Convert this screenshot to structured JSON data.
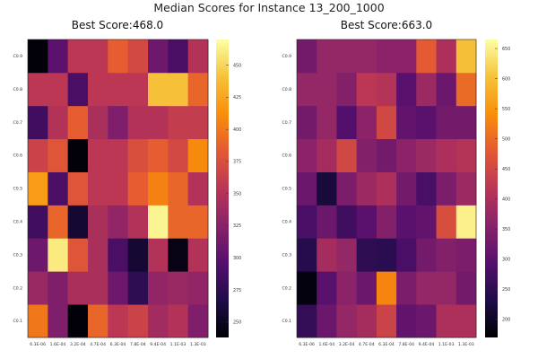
{
  "figure_title": "Median Scores for Instance 13_200_1000",
  "colormap": [
    "#000004",
    "#1f0c48",
    "#550f6d",
    "#88226a",
    "#ba3655",
    "#e35933",
    "#f98e09",
    "#f6c23a",
    "#fcffa4"
  ],
  "chart_data": [
    {
      "type": "heatmap",
      "title": "Best Score:468.0",
      "x": [
        "6.3E-06",
        "1.6E-04",
        "3.2E-04",
        "4.7E-04",
        "6.3E-04",
        "7.8E-04",
        "9.4E-04",
        "1.1E-03",
        "1.3E-03"
      ],
      "y": [
        "C0.1",
        "C0.2",
        "C0.3",
        "C0.4",
        "C0.5",
        "C0.6",
        "C0.7",
        "C0.8",
        "C0.9"
      ],
      "zlim": [
        238,
        470
      ],
      "colorbar_ticks": [
        250,
        275,
        300,
        325,
        350,
        375,
        400,
        425,
        450
      ],
      "z": [
        [
          400,
          320,
          240,
          390,
          355,
          365,
          340,
          350,
          320
        ],
        [
          335,
          320,
          345,
          345,
          310,
          275,
          330,
          335,
          330
        ],
        [
          310,
          460,
          380,
          345,
          290,
          258,
          350,
          245,
          350
        ],
        [
          285,
          390,
          258,
          345,
          330,
          350,
          465,
          390,
          390
        ],
        [
          420,
          290,
          380,
          355,
          355,
          385,
          405,
          390,
          350
        ],
        [
          365,
          380,
          240,
          355,
          355,
          375,
          385,
          370,
          410
        ],
        [
          285,
          350,
          385,
          345,
          320,
          350,
          350,
          360,
          360
        ],
        [
          355,
          355,
          290,
          355,
          355,
          355,
          440,
          440,
          390
        ],
        [
          240,
          300,
          355,
          355,
          385,
          370,
          310,
          290,
          350
        ]
      ]
    },
    {
      "type": "heatmap",
      "title": "Best Score:663.0",
      "x": [
        "6.3E-06",
        "1.6E-04",
        "3.2E-04",
        "4.7E-04",
        "6.3E-04",
        "7.8E-04",
        "9.4E-04",
        "1.1E-03",
        "1.3E-03"
      ],
      "y": [
        "C0.1",
        "C0.2",
        "C0.3",
        "C0.4",
        "C0.5",
        "C0.6",
        "C0.7",
        "C0.8",
        "C0.9"
      ],
      "zlim": [
        170,
        665
      ],
      "colorbar_ticks": [
        200,
        250,
        300,
        350,
        400,
        450,
        500,
        550,
        600,
        650
      ],
      "z": [
        [
          255,
          320,
          370,
          390,
          440,
          310,
          320,
          400,
          400
        ],
        [
          180,
          300,
          360,
          320,
          530,
          340,
          370,
          370,
          330
        ],
        [
          240,
          390,
          370,
          250,
          245,
          280,
          330,
          350,
          340
        ],
        [
          280,
          320,
          270,
          300,
          350,
          300,
          310,
          460,
          650
        ],
        [
          320,
          220,
          340,
          380,
          400,
          330,
          280,
          340,
          380
        ],
        [
          360,
          390,
          450,
          350,
          330,
          360,
          380,
          400,
          410
        ],
        [
          330,
          370,
          290,
          360,
          450,
          310,
          300,
          330,
          330
        ],
        [
          370,
          370,
          350,
          420,
          410,
          300,
          380,
          320,
          500
        ],
        [
          330,
          370,
          370,
          370,
          360,
          360,
          480,
          400,
          600
        ]
      ]
    }
  ]
}
